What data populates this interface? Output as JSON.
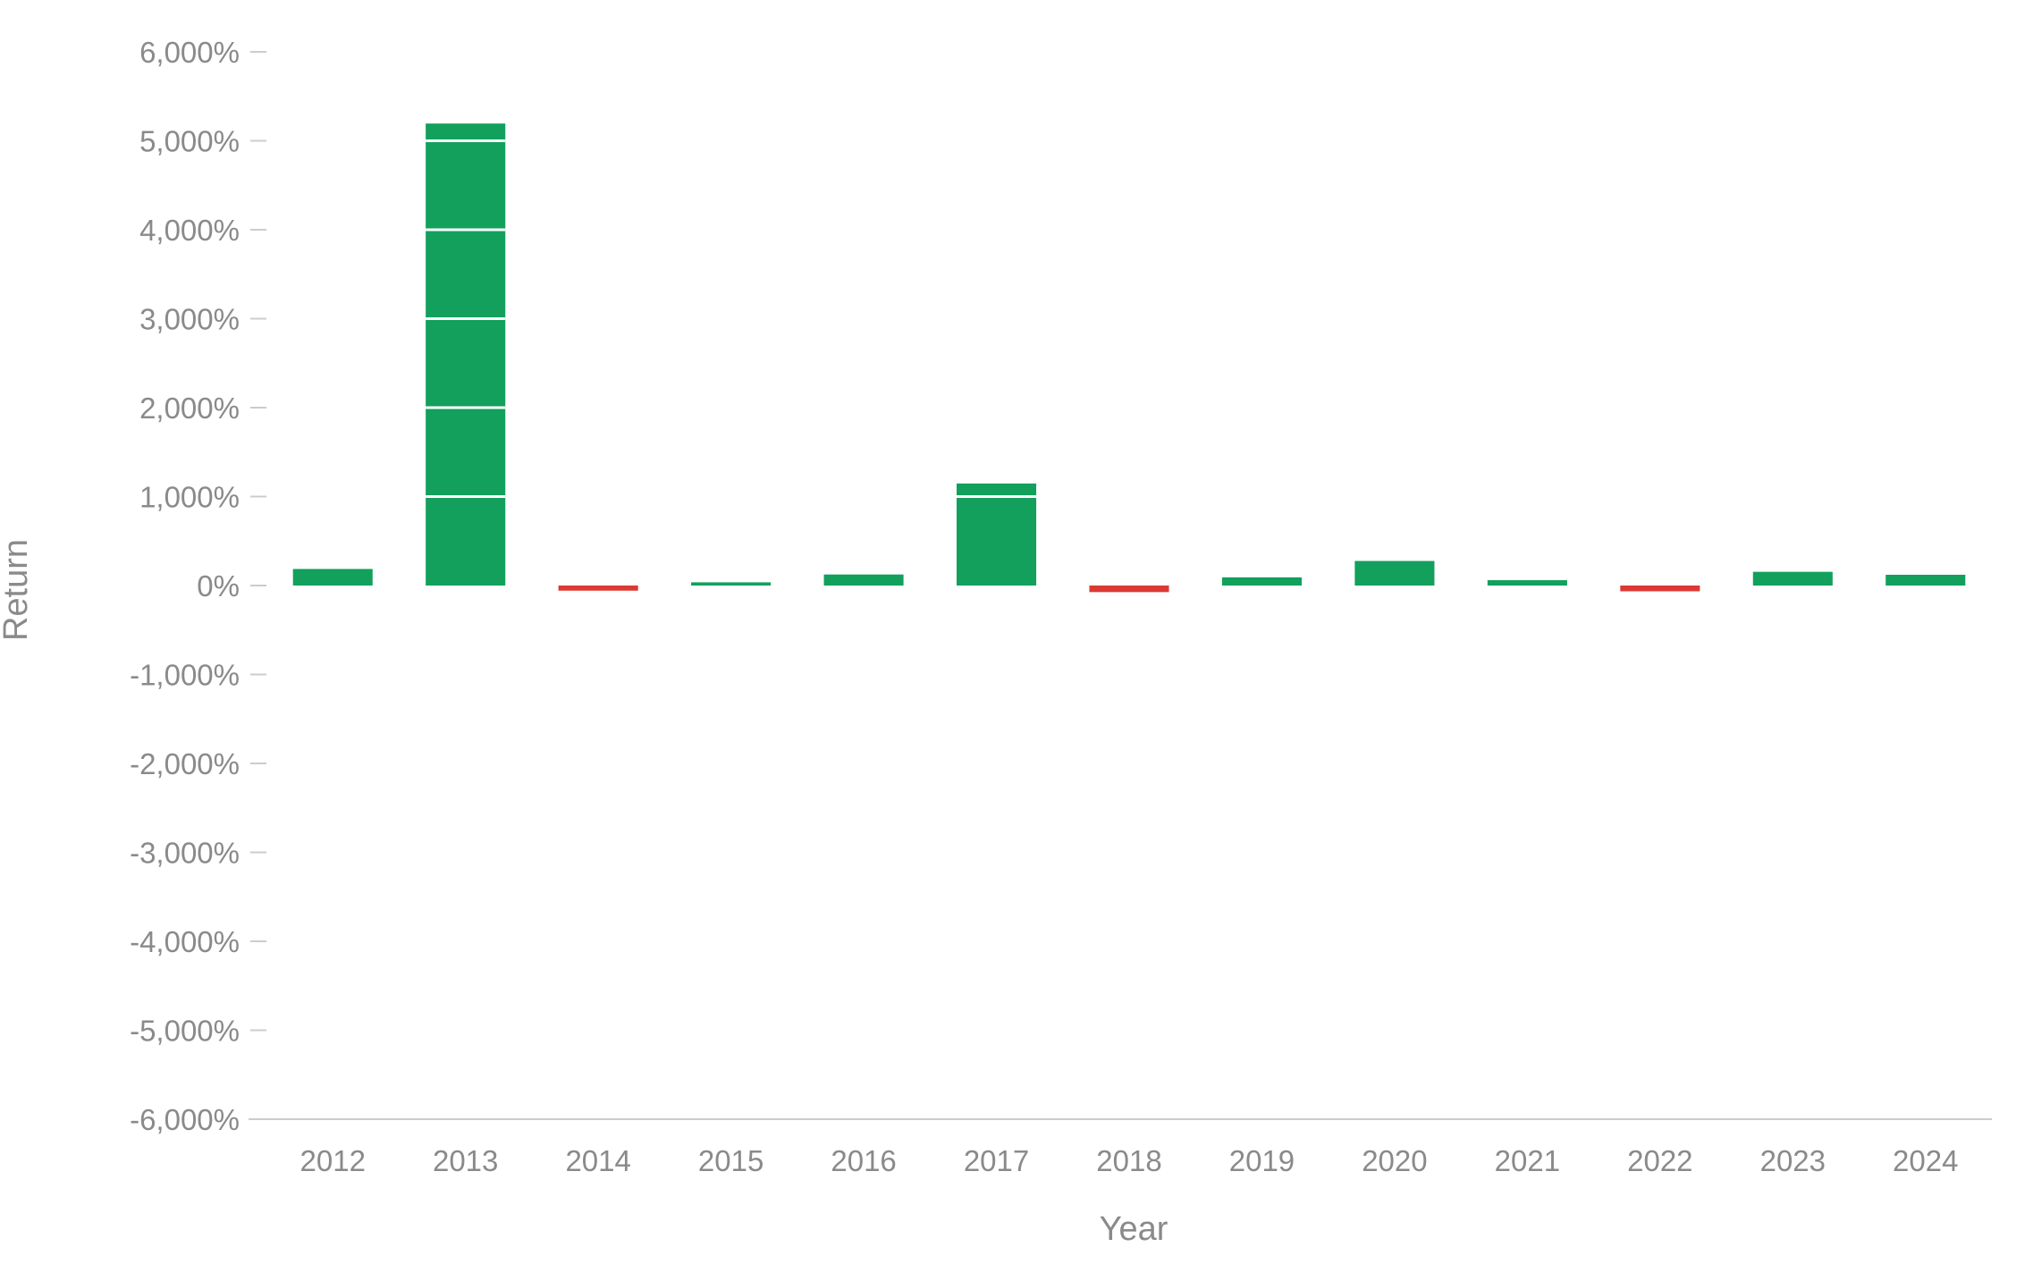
{
  "chart_data": {
    "type": "bar",
    "xlabel": "Year",
    "ylabel": "Return",
    "ylim": [
      -6000,
      6000
    ],
    "yticks": [
      6000,
      5000,
      4000,
      3000,
      2000,
      1000,
      0,
      -1000,
      -2000,
      -3000,
      -4000,
      -5000,
      -6000
    ],
    "ytick_labels": [
      "6,000%",
      "5,000%",
      "4,000%",
      "3,000%",
      "2,000%",
      "1,000%",
      "0%",
      "-1,000%",
      "-2,000%",
      "-3,000%",
      "-4,000%",
      "-5,000%",
      "-6,000%"
    ],
    "categories": [
      "2012",
      "2013",
      "2014",
      "2015",
      "2016",
      "2017",
      "2018",
      "2019",
      "2020",
      "2021",
      "2022",
      "2023",
      "2024"
    ],
    "values": [
      186,
      5194,
      -58,
      36,
      124,
      1147,
      -74,
      92,
      276,
      60,
      -65,
      154,
      121
    ],
    "grid": false,
    "colors": {
      "positive": "#12a05c",
      "negative": "#db3a34",
      "text": "#8a8a8a",
      "axis": "#cccccc"
    }
  }
}
